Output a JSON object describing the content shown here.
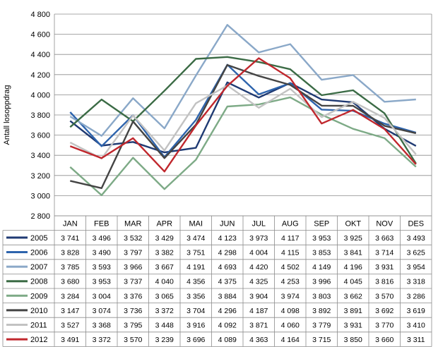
{
  "chart_data": {
    "type": "line",
    "title": "",
    "xlabel": "",
    "ylabel": "Antall losoppdrag",
    "ylim": [
      2800,
      4800
    ],
    "ytick_step": 200,
    "ytick_labels": [
      "2 800",
      "3 000",
      "3 200",
      "3 400",
      "3 600",
      "3 800",
      "4 000",
      "4 200",
      "4 400",
      "4 600",
      "4 800"
    ],
    "grid": "horizontal",
    "legend": "data-table-below",
    "categories": [
      "JAN",
      "FEB",
      "MAR",
      "APR",
      "MAI",
      "JUN",
      "JUL",
      "AUG",
      "SEP",
      "OKT",
      "NOV",
      "DES"
    ],
    "series": [
      {
        "name": "2005",
        "color": "#1f3a73",
        "values": [
          3741,
          3496,
          3532,
          3429,
          3474,
          4123,
          3973,
          4117,
          3953,
          3925,
          3663,
          3493
        ],
        "labels": [
          "3 741",
          "3 496",
          "3 532",
          "3 429",
          "3 474",
          "4 123",
          "3 973",
          "4 117",
          "3 953",
          "3 925",
          "3 663",
          "3 493"
        ]
      },
      {
        "name": "2006",
        "color": "#2e64ad",
        "values": [
          3828,
          3490,
          3797,
          3382,
          3751,
          4298,
          4004,
          4115,
          3853,
          3841,
          3714,
          3625
        ],
        "labels": [
          "3 828",
          "3 490",
          "3 797",
          "3 382",
          "3 751",
          "4 298",
          "4 004",
          "4 115",
          "3 853",
          "3 841",
          "3 714",
          "3 625"
        ]
      },
      {
        "name": "2007",
        "color": "#8aa8c8",
        "values": [
          3785,
          3593,
          3966,
          3667,
          4191,
          4693,
          4420,
          4502,
          4149,
          4196,
          3931,
          3954
        ],
        "labels": [
          "3 785",
          "3 593",
          "3 966",
          "3 667",
          "4 191",
          "4 693",
          "4 420",
          "4 502",
          "4 149",
          "4 196",
          "3 931",
          "3 954"
        ]
      },
      {
        "name": "2008",
        "color": "#3b6b45",
        "values": [
          3680,
          3953,
          3737,
          4040,
          4356,
          4375,
          4325,
          4253,
          3996,
          4045,
          3816,
          3318
        ],
        "labels": [
          "3 680",
          "3 953",
          "3 737",
          "4 040",
          "4 356",
          "4 375",
          "4 325",
          "4 253",
          "3 996",
          "4 045",
          "3 816",
          "3 318"
        ]
      },
      {
        "name": "2009",
        "color": "#7daa86",
        "values": [
          3284,
          3004,
          3376,
          3065,
          3356,
          3884,
          3904,
          3974,
          3803,
          3662,
          3570,
          3286
        ],
        "labels": [
          "3 284",
          "3 004",
          "3 376",
          "3 065",
          "3 356",
          "3 884",
          "3 904",
          "3 974",
          "3 803",
          "3 662",
          "3 570",
          "3 286"
        ]
      },
      {
        "name": "2010",
        "color": "#444444",
        "values": [
          3147,
          3074,
          3736,
          3372,
          3704,
          4296,
          4187,
          4098,
          3892,
          3891,
          3692,
          3619
        ],
        "labels": [
          "3 147",
          "3 074",
          "3 736",
          "3 372",
          "3 704",
          "4 296",
          "4 187",
          "4 098",
          "3 892",
          "3 891",
          "3 692",
          "3 619"
        ]
      },
      {
        "name": "2011",
        "color": "#c2c2c2",
        "values": [
          3527,
          3368,
          3795,
          3448,
          3916,
          4092,
          3871,
          4060,
          3779,
          3931,
          3770,
          3410
        ],
        "labels": [
          "3 527",
          "3 368",
          "3 795",
          "3 448",
          "3 916",
          "4 092",
          "3 871",
          "4 060",
          "3 779",
          "3 931",
          "3 770",
          "3 410"
        ]
      },
      {
        "name": "2012",
        "color": "#c0272d",
        "values": [
          3491,
          3372,
          3570,
          3239,
          3696,
          4089,
          4363,
          4164,
          3715,
          3850,
          3660,
          3311
        ],
        "labels": [
          "3 491",
          "3 372",
          "3 570",
          "3 239",
          "3 696",
          "4 089",
          "4 363",
          "4 164",
          "3 715",
          "3 850",
          "3 660",
          "3 311"
        ]
      }
    ]
  }
}
